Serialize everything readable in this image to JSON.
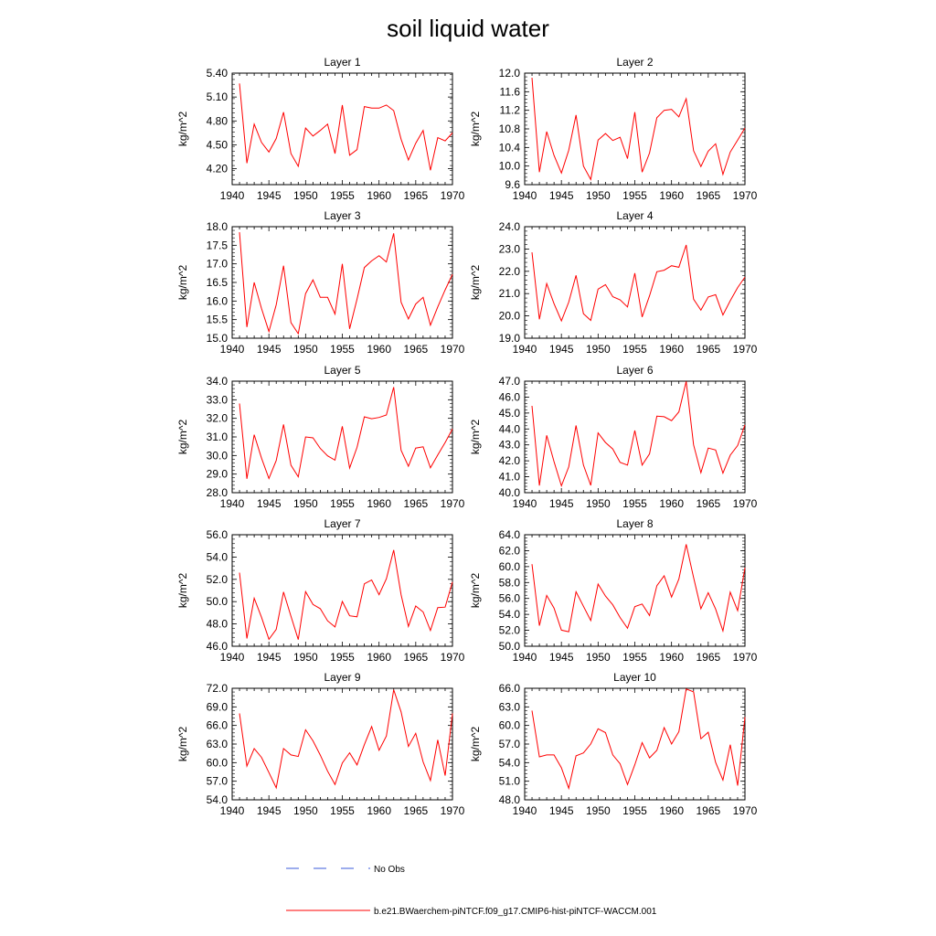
{
  "title": "soil liquid water",
  "colors": {
    "model": "#ff0000",
    "obs": "#3b5bdb",
    "axes": "#000000"
  },
  "legend": {
    "obs_label": "No Obs",
    "model_label": "b.e21.BWaerchem-piNTCF.f09_g17.CMIP6-hist-piNTCF-WACCM.001"
  },
  "chart_data": [
    {
      "type": "line",
      "title": "Layer 1",
      "ylabel": "kg/m^2",
      "xlabel": "",
      "xlim": [
        1940,
        1970
      ],
      "ylim": [
        4.0,
        5.4
      ],
      "xticks": [
        1940,
        1945,
        1950,
        1955,
        1960,
        1965,
        1970
      ],
      "yticks": [
        "5.40",
        "5.10",
        "4.80",
        "4.50",
        "4.20"
      ],
      "x": [
        1941,
        1942,
        1943,
        1944,
        1945,
        1946,
        1947,
        1948,
        1949,
        1950,
        1951,
        1952,
        1953,
        1954,
        1955,
        1956,
        1957,
        1958,
        1959,
        1960,
        1961,
        1962,
        1963,
        1964,
        1965,
        1966,
        1967,
        1968,
        1969,
        1970
      ],
      "series": [
        {
          "values": [
            5.27,
            4.27,
            4.76,
            4.53,
            4.41,
            4.58,
            4.91,
            4.39,
            4.23,
            4.71,
            4.61,
            4.68,
            4.76,
            4.39,
            5.0,
            4.37,
            4.44,
            4.98,
            4.96,
            4.96,
            5.0,
            4.93,
            4.57,
            4.31,
            4.52,
            4.68,
            4.18,
            4.59,
            4.55,
            4.65
          ]
        }
      ]
    },
    {
      "type": "line",
      "title": "Layer 2",
      "ylabel": "kg/m^2",
      "xlabel": "",
      "xlim": [
        1940,
        1970
      ],
      "ylim": [
        9.6,
        12.0
      ],
      "xticks": [
        1940,
        1945,
        1950,
        1955,
        1960,
        1965,
        1970
      ],
      "yticks": [
        "12.0",
        "11.6",
        "11.2",
        "10.8",
        "10.4",
        "10.0",
        "9.6"
      ],
      "x": [
        1941,
        1942,
        1943,
        1944,
        1945,
        1946,
        1947,
        1948,
        1949,
        1950,
        1951,
        1952,
        1953,
        1954,
        1955,
        1956,
        1957,
        1958,
        1959,
        1960,
        1961,
        1962,
        1963,
        1964,
        1965,
        1966,
        1967,
        1968,
        1969,
        1970
      ],
      "series": [
        {
          "values": [
            11.9,
            9.87,
            10.74,
            10.23,
            9.85,
            10.34,
            11.1,
            10.0,
            9.71,
            10.56,
            10.7,
            10.55,
            10.62,
            10.16,
            11.16,
            9.87,
            10.28,
            11.04,
            11.2,
            11.22,
            11.06,
            11.45,
            10.33,
            9.99,
            10.32,
            10.48,
            9.82,
            10.3,
            10.56,
            10.82
          ]
        }
      ]
    },
    {
      "type": "line",
      "title": "Layer 3",
      "ylabel": "kg/m^2",
      "xlabel": "",
      "xlim": [
        1940,
        1970
      ],
      "ylim": [
        15.0,
        18.0
      ],
      "xticks": [
        1940,
        1945,
        1950,
        1955,
        1960,
        1965,
        1970
      ],
      "yticks": [
        "18.0",
        "17.5",
        "17.0",
        "16.5",
        "16.0",
        "15.5",
        "15.0"
      ],
      "x": [
        1941,
        1942,
        1943,
        1944,
        1945,
        1946,
        1947,
        1948,
        1949,
        1950,
        1951,
        1952,
        1953,
        1954,
        1955,
        1956,
        1957,
        1958,
        1959,
        1960,
        1961,
        1962,
        1963,
        1964,
        1965,
        1966,
        1967,
        1968,
        1969,
        1970
      ],
      "series": [
        {
          "values": [
            17.85,
            15.3,
            16.5,
            15.8,
            15.18,
            15.9,
            16.95,
            15.42,
            15.12,
            16.2,
            16.57,
            16.1,
            16.1,
            15.65,
            17.0,
            15.25,
            16.05,
            16.9,
            17.08,
            17.22,
            17.05,
            17.82,
            15.97,
            15.52,
            15.92,
            16.1,
            15.35,
            15.84,
            16.3,
            16.72
          ]
        }
      ]
    },
    {
      "type": "line",
      "title": "Layer 4",
      "ylabel": "kg/m^2",
      "xlabel": "",
      "xlim": [
        1940,
        1970
      ],
      "ylim": [
        19.0,
        24.0
      ],
      "xticks": [
        1940,
        1945,
        1950,
        1955,
        1960,
        1965,
        1970
      ],
      "yticks": [
        "24.0",
        "23.0",
        "22.0",
        "21.0",
        "20.0",
        "19.0"
      ],
      "x": [
        1941,
        1942,
        1943,
        1944,
        1945,
        1946,
        1947,
        1948,
        1949,
        1950,
        1951,
        1952,
        1953,
        1954,
        1955,
        1956,
        1957,
        1958,
        1959,
        1960,
        1961,
        1962,
        1963,
        1964,
        1965,
        1966,
        1967,
        1968,
        1969,
        1970
      ],
      "series": [
        {
          "values": [
            22.85,
            19.85,
            21.45,
            20.55,
            19.78,
            20.62,
            21.82,
            20.1,
            19.8,
            21.2,
            21.4,
            20.86,
            20.72,
            20.4,
            21.92,
            19.95,
            20.9,
            21.98,
            22.05,
            22.25,
            22.18,
            23.18,
            20.75,
            20.26,
            20.85,
            20.95,
            20.04,
            20.68,
            21.27,
            21.74
          ]
        }
      ]
    },
    {
      "type": "line",
      "title": "Layer 5",
      "ylabel": "kg/m^2",
      "xlabel": "",
      "xlim": [
        1940,
        1970
      ],
      "ylim": [
        28.0,
        34.0
      ],
      "xticks": [
        1940,
        1945,
        1950,
        1955,
        1960,
        1965,
        1970
      ],
      "yticks": [
        "34.0",
        "33.0",
        "32.0",
        "31.0",
        "30.0",
        "29.0",
        "28.0"
      ],
      "x": [
        1941,
        1942,
        1943,
        1944,
        1945,
        1946,
        1947,
        1948,
        1949,
        1950,
        1951,
        1952,
        1953,
        1954,
        1955,
        1956,
        1957,
        1958,
        1959,
        1960,
        1961,
        1962,
        1963,
        1964,
        1965,
        1966,
        1967,
        1968,
        1969,
        1970
      ],
      "series": [
        {
          "values": [
            32.8,
            28.75,
            31.12,
            29.86,
            28.76,
            29.73,
            31.67,
            29.48,
            28.85,
            31.0,
            30.95,
            30.38,
            29.98,
            29.75,
            31.57,
            29.33,
            30.44,
            32.08,
            31.98,
            32.05,
            32.18,
            33.68,
            30.28,
            29.42,
            30.4,
            30.47,
            29.34,
            30.03,
            30.7,
            31.43
          ]
        }
      ]
    },
    {
      "type": "line",
      "title": "Layer 6",
      "ylabel": "kg/m^2",
      "xlabel": "",
      "xlim": [
        1940,
        1970
      ],
      "ylim": [
        40.0,
        47.0
      ],
      "xticks": [
        1940,
        1945,
        1950,
        1955,
        1960,
        1965,
        1970
      ],
      "yticks": [
        "47.0",
        "46.0",
        "45.0",
        "44.0",
        "43.0",
        "42.0",
        "41.0",
        "40.0"
      ],
      "x": [
        1941,
        1942,
        1943,
        1944,
        1945,
        1946,
        1947,
        1948,
        1949,
        1950,
        1951,
        1952,
        1953,
        1954,
        1955,
        1956,
        1957,
        1958,
        1959,
        1960,
        1961,
        1962,
        1963,
        1964,
        1965,
        1966,
        1967,
        1968,
        1969,
        1970
      ],
      "series": [
        {
          "values": [
            45.45,
            40.45,
            43.6,
            41.95,
            40.43,
            41.62,
            44.22,
            41.73,
            40.46,
            43.75,
            43.15,
            42.74,
            41.9,
            41.73,
            43.9,
            41.73,
            42.44,
            44.8,
            44.77,
            44.52,
            45.07,
            46.98,
            43.0,
            41.25,
            42.8,
            42.68,
            41.23,
            42.35,
            42.96,
            44.26
          ]
        }
      ]
    },
    {
      "type": "line",
      "title": "Layer 7",
      "ylabel": "kg/m^2",
      "xlabel": "",
      "xlim": [
        1940,
        1970
      ],
      "ylim": [
        46.0,
        56.0
      ],
      "xticks": [
        1940,
        1945,
        1950,
        1955,
        1960,
        1965,
        1970
      ],
      "yticks": [
        "56.0",
        "54.0",
        "52.0",
        "50.0",
        "48.0",
        "46.0"
      ],
      "x": [
        1941,
        1942,
        1943,
        1944,
        1945,
        1946,
        1947,
        1948,
        1949,
        1950,
        1951,
        1952,
        1953,
        1954,
        1955,
        1956,
        1957,
        1958,
        1959,
        1960,
        1961,
        1962,
        1963,
        1964,
        1965,
        1966,
        1967,
        1968,
        1969,
        1970
      ],
      "series": [
        {
          "values": [
            52.6,
            46.7,
            50.3,
            48.6,
            46.62,
            47.52,
            50.87,
            48.7,
            46.6,
            50.9,
            49.75,
            49.37,
            48.28,
            47.73,
            50.02,
            48.73,
            48.64,
            51.6,
            51.94,
            50.62,
            52.05,
            54.63,
            50.62,
            47.78,
            49.61,
            49.07,
            47.41,
            49.47,
            49.51,
            51.76
          ]
        }
      ]
    },
    {
      "type": "line",
      "title": "Layer 8",
      "ylabel": "kg/m^2",
      "xlabel": "",
      "xlim": [
        1940,
        1970
      ],
      "ylim": [
        50.0,
        64.0
      ],
      "xticks": [
        1940,
        1945,
        1950,
        1955,
        1960,
        1965,
        1970
      ],
      "yticks": [
        "64.0",
        "62.0",
        "60.0",
        "58.0",
        "56.0",
        "54.0",
        "52.0",
        "50.0"
      ],
      "x": [
        1941,
        1942,
        1943,
        1944,
        1945,
        1946,
        1947,
        1948,
        1949,
        1950,
        1951,
        1952,
        1953,
        1954,
        1955,
        1956,
        1957,
        1958,
        1959,
        1960,
        1961,
        1962,
        1963,
        1964,
        1965,
        1966,
        1967,
        1968,
        1969,
        1970
      ],
      "series": [
        {
          "values": [
            60.3,
            52.58,
            56.38,
            54.8,
            52.02,
            51.82,
            56.84,
            55.02,
            53.22,
            57.8,
            56.3,
            55.2,
            53.6,
            52.26,
            54.97,
            55.3,
            53.86,
            57.6,
            58.85,
            56.17,
            58.44,
            62.8,
            58.63,
            54.7,
            56.73,
            54.67,
            51.92,
            56.79,
            54.47,
            59.86
          ]
        }
      ]
    },
    {
      "type": "line",
      "title": "Layer 9",
      "ylabel": "kg/m^2",
      "xlabel": "",
      "xlim": [
        1940,
        1970
      ],
      "ylim": [
        54.0,
        72.0
      ],
      "xticks": [
        1940,
        1945,
        1950,
        1955,
        1960,
        1965,
        1970
      ],
      "yticks": [
        "72.0",
        "69.0",
        "66.0",
        "63.0",
        "60.0",
        "57.0",
        "54.0"
      ],
      "x": [
        1941,
        1942,
        1943,
        1944,
        1945,
        1946,
        1947,
        1948,
        1949,
        1950,
        1951,
        1952,
        1953,
        1954,
        1955,
        1956,
        1957,
        1958,
        1959,
        1960,
        1961,
        1962,
        1963,
        1964,
        1965,
        1966,
        1967,
        1968,
        1969,
        1970
      ],
      "series": [
        {
          "values": [
            67.95,
            59.45,
            62.28,
            60.84,
            58.4,
            55.93,
            62.28,
            61.25,
            60.99,
            65.3,
            63.51,
            61.22,
            58.62,
            56.46,
            59.95,
            61.58,
            59.64,
            62.89,
            65.82,
            62.0,
            64.3,
            71.77,
            68.2,
            62.61,
            64.73,
            60.13,
            57.11,
            63.66,
            57.91,
            67.95
          ]
        }
      ]
    },
    {
      "type": "line",
      "title": "Layer 10",
      "ylabel": "kg/m^2",
      "xlabel": "",
      "xlim": [
        1940,
        1970
      ],
      "ylim": [
        48.0,
        66.0
      ],
      "xticks": [
        1940,
        1945,
        1950,
        1955,
        1960,
        1965,
        1970
      ],
      "yticks": [
        "66.0",
        "63.0",
        "60.0",
        "57.0",
        "54.0",
        "51.0",
        "48.0"
      ],
      "x": [
        1941,
        1942,
        1943,
        1944,
        1945,
        1946,
        1947,
        1948,
        1949,
        1950,
        1951,
        1952,
        1953,
        1954,
        1955,
        1956,
        1957,
        1958,
        1959,
        1960,
        1961,
        1962,
        1963,
        1964,
        1965,
        1966,
        1967,
        1968,
        1969,
        1970
      ],
      "series": [
        {
          "values": [
            62.4,
            54.93,
            55.25,
            55.25,
            53.16,
            49.86,
            55.1,
            55.57,
            57.01,
            59.46,
            58.84,
            55.25,
            53.82,
            50.47,
            53.66,
            57.22,
            54.77,
            55.98,
            59.66,
            57.01,
            58.99,
            65.88,
            65.42,
            57.86,
            58.9,
            54.04,
            51.19,
            56.89,
            50.3,
            61.36
          ]
        }
      ]
    }
  ]
}
